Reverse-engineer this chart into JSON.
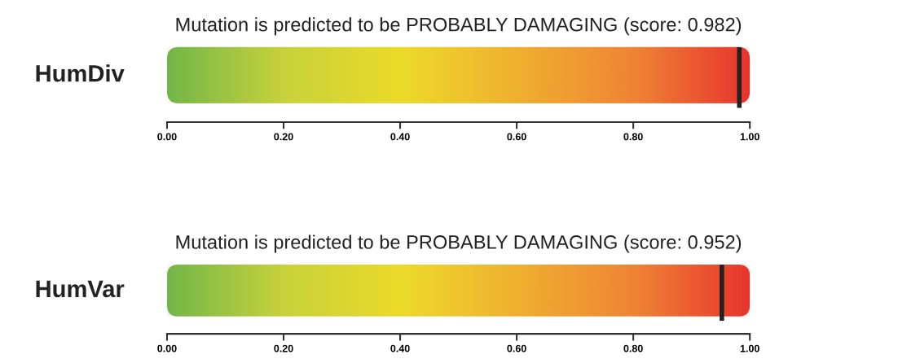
{
  "chart_data": [
    {
      "type": "bar",
      "orientation": "horizontal",
      "categories": [
        null
      ],
      "values": [
        1
      ],
      "tick_labels": "x",
      "title": "Mutation is predicted to be PROBABLY DAMAGING (score: 0.982)",
      "ylabel": "HumDiv",
      "xlim": [
        0,
        1
      ],
      "xticks": [
        {
          "value": 0,
          "label": "0.00"
        },
        {
          "value": 0.2,
          "label": "0.20"
        },
        {
          "value": 0.4,
          "label": "0.40"
        },
        {
          "value": 0.6,
          "label": "0.60"
        },
        {
          "value": 0.8,
          "label": "0.80"
        },
        {
          "value": 1,
          "label": "1.00"
        }
      ],
      "ref_lines": [
        {
          "axis": "x",
          "value": 0.982,
          "color": "#222222"
        }
      ]
    },
    {
      "type": "bar",
      "orientation": "horizontal",
      "categories": [
        null
      ],
      "values": [
        1
      ],
      "tick_labels": "x",
      "title": "Mutation is predicted to be PROBABLY DAMAGING (score: 0.952)",
      "ylabel": "HumVar",
      "xlim": [
        0,
        1
      ],
      "xticks": [
        {
          "value": 0,
          "label": "0.00"
        },
        {
          "value": 0.2,
          "label": "0.20"
        },
        {
          "value": 0.4,
          "label": "0.40"
        },
        {
          "value": 0.6,
          "label": "0.60"
        },
        {
          "value": 0.8,
          "label": "0.80"
        },
        {
          "value": 1,
          "label": "1.00"
        }
      ],
      "ref_lines": [
        {
          "axis": "x",
          "value": 0.952,
          "color": "#222222"
        }
      ]
    }
  ]
}
